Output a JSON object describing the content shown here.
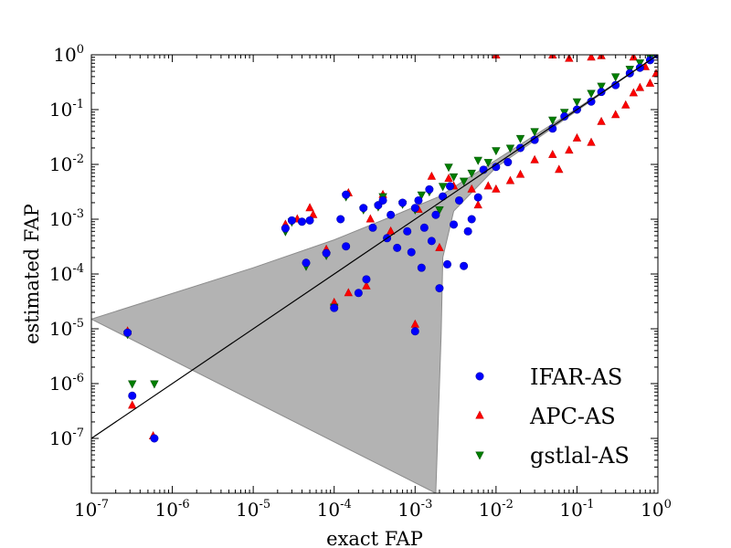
{
  "chart_data": {
    "type": "scatter",
    "xscale": "log",
    "yscale": "log",
    "xlim": [
      1e-07,
      1
    ],
    "ylim": [
      1e-08,
      1
    ],
    "xlabel": "exact FAP",
    "ylabel": "estimated FAP",
    "x_ticks": [
      {
        "base": "10",
        "exp": "-7"
      },
      {
        "base": "10",
        "exp": "-6"
      },
      {
        "base": "10",
        "exp": "-5"
      },
      {
        "base": "10",
        "exp": "-4"
      },
      {
        "base": "10",
        "exp": "-3"
      },
      {
        "base": "10",
        "exp": "-2"
      },
      {
        "base": "10",
        "exp": "-1"
      },
      {
        "base": "10",
        "exp": "0"
      }
    ],
    "y_ticks": [
      {
        "base": "10",
        "exp": "-7"
      },
      {
        "base": "10",
        "exp": "-6"
      },
      {
        "base": "10",
        "exp": "-5"
      },
      {
        "base": "10",
        "exp": "-4"
      },
      {
        "base": "10",
        "exp": "-3"
      },
      {
        "base": "10",
        "exp": "-2"
      },
      {
        "base": "10",
        "exp": "-1"
      },
      {
        "base": "10",
        "exp": "0"
      }
    ],
    "grid": false,
    "legend_position": "lower-right",
    "reference_line": {
      "x": [
        1e-07,
        1
      ],
      "y": [
        1e-07,
        1
      ],
      "color": "#000000"
    },
    "confidence_band": {
      "color": "#b3b3b3",
      "upper": [
        [
          1e-07,
          1.5e-05
        ],
        [
          1e-05,
          0.00013
        ],
        [
          0.0001,
          0.00042
        ],
        [
          0.0005,
          0.0011
        ],
        [
          0.002,
          0.0026
        ],
        [
          0.01,
          0.012
        ],
        [
          0.1,
          0.105
        ],
        [
          1,
          1
        ]
      ],
      "lower": [
        [
          1,
          1
        ],
        [
          0.1,
          0.095
        ],
        [
          0.01,
          0.0088
        ],
        [
          0.003,
          0.0014
        ],
        [
          0.0022,
          0.0002
        ],
        [
          0.0021,
          8e-06
        ],
        [
          0.0018,
          1e-08
        ]
      ]
    },
    "series": [
      {
        "name": "IFAR-AS",
        "marker": "circle",
        "color": "#0000ff",
        "edge": "#0000aa",
        "points": [
          [
            2.8e-07,
            8.5e-06
          ],
          [
            3.2e-07,
            6e-07
          ],
          [
            6e-07,
            1e-07
          ],
          [
            2.5e-05,
            0.00068
          ],
          [
            3e-05,
            0.00095
          ],
          [
            4e-05,
            0.0009
          ],
          [
            4.5e-05,
            0.00016
          ],
          [
            5e-05,
            0.00095
          ],
          [
            8e-05,
            0.00024
          ],
          [
            0.0001,
            2.4e-05
          ],
          [
            0.00012,
            0.001
          ],
          [
            0.00014,
            0.0028
          ],
          [
            0.00014,
            0.00032
          ],
          [
            0.0002,
            4.5e-05
          ],
          [
            0.00023,
            0.0016
          ],
          [
            0.00025,
            8e-05
          ],
          [
            0.0003,
            0.0007
          ],
          [
            0.00035,
            0.0018
          ],
          [
            0.0004,
            0.0022
          ],
          [
            0.00045,
            0.00045
          ],
          [
            0.0005,
            0.0012
          ],
          [
            0.0006,
            0.0003
          ],
          [
            0.0007,
            0.002
          ],
          [
            0.0008,
            0.0006
          ],
          [
            0.0009,
            0.00025
          ],
          [
            0.001,
            9e-06
          ],
          [
            0.001,
            0.0016
          ],
          [
            0.0011,
            0.0022
          ],
          [
            0.0012,
            0.00013
          ],
          [
            0.0013,
            0.0007
          ],
          [
            0.0015,
            0.0035
          ],
          [
            0.0016,
            0.0004
          ],
          [
            0.0018,
            0.0012
          ],
          [
            0.002,
            5.5e-05
          ],
          [
            0.0022,
            0.0026
          ],
          [
            0.0025,
            0.00015
          ],
          [
            0.0027,
            0.004
          ],
          [
            0.003,
            0.0008
          ],
          [
            0.0035,
            0.0022
          ],
          [
            0.004,
            0.00014
          ],
          [
            0.0045,
            0.0006
          ],
          [
            0.005,
            0.001
          ],
          [
            0.006,
            0.0025
          ],
          [
            0.007,
            0.008
          ],
          [
            0.01,
            0.009
          ],
          [
            0.014,
            0.011
          ],
          [
            0.02,
            0.02
          ],
          [
            0.03,
            0.028
          ],
          [
            0.05,
            0.045
          ],
          [
            0.07,
            0.075
          ],
          [
            0.1,
            0.1
          ],
          [
            0.15,
            0.14
          ],
          [
            0.2,
            0.21
          ],
          [
            0.3,
            0.28
          ],
          [
            0.45,
            0.46
          ],
          [
            0.6,
            0.58
          ],
          [
            0.8,
            0.8
          ],
          [
            1,
            1
          ]
        ]
      },
      {
        "name": "APC-AS",
        "marker": "triangle-up",
        "color": "#ff0000",
        "edge": "#cc0000",
        "points": [
          [
            3.2e-07,
            4e-07
          ],
          [
            5.8e-07,
            1.1e-07
          ],
          [
            2.8e-07,
            9e-06
          ],
          [
            2.5e-05,
            0.0008
          ],
          [
            3.5e-05,
            0.001
          ],
          [
            5e-05,
            0.0016
          ],
          [
            5.5e-05,
            0.0012
          ],
          [
            8e-05,
            0.00028
          ],
          [
            0.0001,
            3e-05
          ],
          [
            0.00015,
            0.003
          ],
          [
            0.00015,
            4.5e-05
          ],
          [
            0.00025,
            6e-05
          ],
          [
            0.00028,
            0.001
          ],
          [
            0.0004,
            0.0028
          ],
          [
            0.0005,
            0.0006
          ],
          [
            0.001,
            1.2e-05
          ],
          [
            0.0011,
            0.0015
          ],
          [
            0.0016,
            0.006
          ],
          [
            0.002,
            0.0003
          ],
          [
            0.0026,
            0.0055
          ],
          [
            0.003,
            0.004
          ],
          [
            0.005,
            0.0035
          ],
          [
            0.006,
            0.0018
          ],
          [
            0.008,
            0.004
          ],
          [
            0.01,
            0.0035
          ],
          [
            0.015,
            0.005
          ],
          [
            0.02,
            0.0065
          ],
          [
            0.03,
            0.012
          ],
          [
            0.05,
            0.015
          ],
          [
            0.06,
            0.008
          ],
          [
            0.08,
            0.018
          ],
          [
            0.1,
            0.03
          ],
          [
            0.15,
            0.025
          ],
          [
            0.2,
            0.06
          ],
          [
            0.3,
            0.08
          ],
          [
            0.4,
            0.12
          ],
          [
            0.5,
            0.2
          ],
          [
            0.6,
            0.25
          ],
          [
            0.8,
            0.3
          ],
          [
            0.95,
            0.45
          ],
          [
            0.15,
            0.9
          ],
          [
            0.2,
            0.95
          ],
          [
            0.08,
            0.85
          ],
          [
            0.05,
            0.98
          ],
          [
            0.01,
            0.98
          ],
          [
            0.5,
            0.9
          ],
          [
            0.7,
            0.6
          ]
        ]
      },
      {
        "name": "gstlal-AS",
        "marker": "triangle-down",
        "color": "#007f00",
        "edge": "#005500",
        "points": [
          [
            3.2e-07,
            1e-06
          ],
          [
            6e-07,
            1e-06
          ],
          [
            2.8e-07,
            8e-06
          ],
          [
            2.5e-05,
            0.0006
          ],
          [
            3e-05,
            0.0009
          ],
          [
            4.5e-05,
            0.00014
          ],
          [
            8e-05,
            0.00022
          ],
          [
            0.0001,
            2.5e-05
          ],
          [
            0.00014,
            0.0026
          ],
          [
            0.00023,
            0.0015
          ],
          [
            0.00035,
            0.0017
          ],
          [
            0.0004,
            0.0026
          ],
          [
            0.0007,
            0.0019
          ],
          [
            0.001,
            0.0015
          ],
          [
            0.0012,
            0.0028
          ],
          [
            0.0015,
            0.0032
          ],
          [
            0.002,
            0.0015
          ],
          [
            0.0022,
            0.004
          ],
          [
            0.0026,
            0.009
          ],
          [
            0.003,
            0.006
          ],
          [
            0.004,
            0.005
          ],
          [
            0.005,
            0.007
          ],
          [
            0.006,
            0.012
          ],
          [
            0.008,
            0.011
          ],
          [
            0.01,
            0.018
          ],
          [
            0.015,
            0.02
          ],
          [
            0.02,
            0.03
          ],
          [
            0.03,
            0.04
          ],
          [
            0.05,
            0.065
          ],
          [
            0.07,
            0.09
          ],
          [
            0.1,
            0.14
          ],
          [
            0.15,
            0.2
          ],
          [
            0.2,
            0.27
          ],
          [
            0.3,
            0.4
          ],
          [
            0.45,
            0.55
          ],
          [
            0.6,
            0.72
          ],
          [
            0.8,
            0.9
          ],
          [
            1,
            1
          ]
        ]
      }
    ]
  }
}
